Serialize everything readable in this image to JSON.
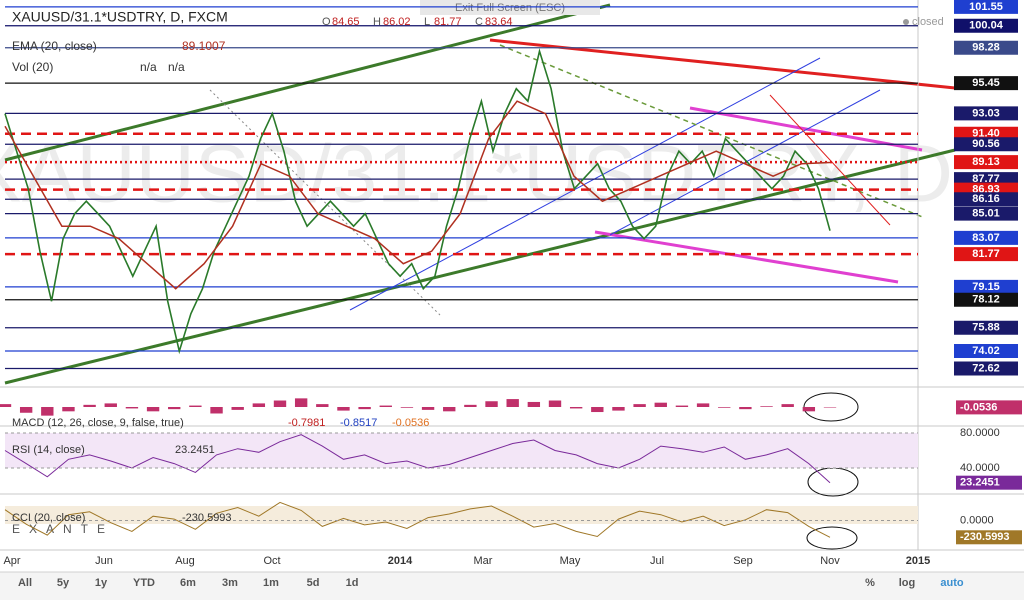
{
  "window": {
    "exit_fullscreen": "Exit Full Screen (ESC)",
    "status": "closed",
    "watermark": "XAUUSD/31.1*USDTRY, D",
    "logo": "EXANTE"
  },
  "chart_data": [
    {
      "type": "line",
      "title": "XAUUSD/31.1*USDTRY, D, FXCM",
      "ohlc": [
        {
          "label": "O",
          "value": 84.65
        },
        {
          "label": "H",
          "value": 86.02
        },
        {
          "label": "L",
          "value": 81.77
        },
        {
          "label": "C",
          "value": 83.64
        }
      ],
      "color": "#2a7a2a",
      "values": [
        93,
        90,
        87,
        82,
        78,
        83,
        85,
        86,
        85,
        84,
        82,
        80,
        82,
        84,
        78,
        74,
        77,
        79,
        82,
        84,
        86,
        88,
        91,
        93,
        90,
        86,
        84,
        85,
        86,
        85,
        84,
        85,
        83,
        81,
        80,
        81,
        79,
        80,
        84,
        87,
        91,
        94,
        90,
        93,
        95,
        94,
        98,
        95,
        90,
        87,
        88,
        89,
        87,
        86,
        84,
        83,
        84,
        88,
        90,
        89,
        90,
        88,
        91,
        90,
        89,
        88,
        87,
        88,
        90,
        89,
        87,
        83.64
      ],
      "series": [
        {
          "name": "EMA (20, close)",
          "color": "#b03020",
          "last": 89.1007,
          "values": [
            92,
            88,
            84,
            84,
            83,
            81,
            79,
            81,
            84,
            89,
            88,
            85,
            84,
            83,
            81,
            82,
            85,
            91,
            94,
            93,
            88,
            86,
            87,
            88,
            89,
            90,
            89,
            88,
            89,
            89.1007
          ]
        }
      ],
      "volume": {
        "name": "Vol (20)",
        "readouts": [
          "n/a",
          "n/a"
        ]
      },
      "ylim": [
        71.3,
        102.1
      ],
      "levels": [
        {
          "value": 101.55,
          "color": "#1f3fd0",
          "style": "solid"
        },
        {
          "value": 100.04,
          "color": "#10106a",
          "style": "solid"
        },
        {
          "value": 98.28,
          "color": "#3a4a8a",
          "style": "solid"
        },
        {
          "value": 95.45,
          "color": "#111111",
          "style": "solid"
        },
        {
          "value": 93.03,
          "color": "#1a1a6a",
          "style": "solid"
        },
        {
          "value": 91.4,
          "label": "91.40",
          "color": "#e01515",
          "style": "dashed"
        },
        {
          "value": 90.56,
          "color": "#1a1a6a",
          "style": "solid"
        },
        {
          "value": 89.13,
          "color": "#e01515",
          "style": "dotted"
        },
        {
          "value": 87.77,
          "color": "#1a1a6a",
          "style": "solid"
        },
        {
          "value": 86.93,
          "color": "#e01515",
          "style": "dashed"
        },
        {
          "value": 86.16,
          "color": "#1a1a6a",
          "style": "solid"
        },
        {
          "value": 85.01,
          "color": "#1a1a6a",
          "style": "solid"
        },
        {
          "value": 83.07,
          "color": "#1f3fd0",
          "style": "solid"
        },
        {
          "value": 81.77,
          "color": "#e01515",
          "style": "dashed"
        },
        {
          "value": 79.15,
          "color": "#1f3fd0",
          "style": "solid"
        },
        {
          "value": 78.12,
          "color": "#111111",
          "style": "solid"
        },
        {
          "value": 75.88,
          "color": "#1a1a6a",
          "style": "solid"
        },
        {
          "value": 74.02,
          "color": "#1f3fd0",
          "style": "solid"
        },
        {
          "value": 72.62,
          "color": "#1a1a6a",
          "style": "solid"
        }
      ]
    },
    {
      "type": "bar",
      "title": "MACD (12, 26, close, 9, false, true)",
      "readouts": [
        -0.7981,
        -0.8517,
        -0.0536
      ],
      "last": -0.0536,
      "color": "#c0306a",
      "ylim": [
        -2.5,
        2.5
      ],
      "values": [
        0.4,
        -0.8,
        -1.2,
        -0.6,
        0.3,
        0.5,
        -0.2,
        -0.6,
        -0.3,
        0.2,
        -0.9,
        -0.4,
        0.5,
        0.9,
        1.2,
        0.4,
        -0.5,
        -0.3,
        0.2,
        -0.1,
        -0.4,
        -0.6,
        0.3,
        0.8,
        1.1,
        0.7,
        0.9,
        -0.2,
        -0.7,
        -0.5,
        0.4,
        0.6,
        0.2,
        0.5,
        -0.1,
        -0.3,
        0.1,
        0.4,
        -0.6,
        -0.0536
      ]
    },
    {
      "type": "line",
      "title": "RSI (14, close)",
      "last": 23.2451,
      "color": "#7a2a9a",
      "ylim": [
        12.6,
        85.7
      ],
      "yticks": [
        {
          "value": 80,
          "label": "80.0000"
        },
        {
          "value": 40,
          "label": "40.0000"
        }
      ],
      "values": [
        60,
        45,
        30,
        50,
        55,
        48,
        40,
        52,
        45,
        35,
        55,
        62,
        58,
        70,
        78,
        65,
        50,
        55,
        45,
        48,
        40,
        44,
        52,
        60,
        68,
        72,
        60,
        55,
        45,
        40,
        50,
        65,
        62,
        58,
        64,
        50,
        55,
        62,
        45,
        23.2451
      ]
    },
    {
      "type": "line",
      "title": "CCI (20, close)",
      "last": -230.5993,
      "color": "#a07828",
      "ylim": [
        -378,
        338
      ],
      "yticks": [
        {
          "value": 0,
          "label": "0.0000"
        }
      ],
      "values": [
        150,
        -50,
        -200,
        80,
        120,
        -30,
        -150,
        60,
        20,
        -120,
        100,
        180,
        60,
        250,
        140,
        -80,
        30,
        -60,
        -20,
        -110,
        40,
        90,
        160,
        200,
        60,
        -90,
        -40,
        -150,
        -220,
        20,
        130,
        80,
        -20,
        60,
        -70,
        10,
        150,
        110,
        -80,
        -230.5993
      ]
    }
  ],
  "time_axis": [
    "Apr",
    "Jun",
    "Aug",
    "Oct",
    "2014",
    "Mar",
    "May",
    "Jul",
    "Sep",
    "Nov",
    "2015"
  ],
  "toolbar": {
    "ranges": [
      "All",
      "5y",
      "1y",
      "YTD",
      "6m",
      "3m",
      "1m",
      "5d",
      "1d"
    ],
    "options": [
      "%",
      "log",
      "auto"
    ]
  }
}
